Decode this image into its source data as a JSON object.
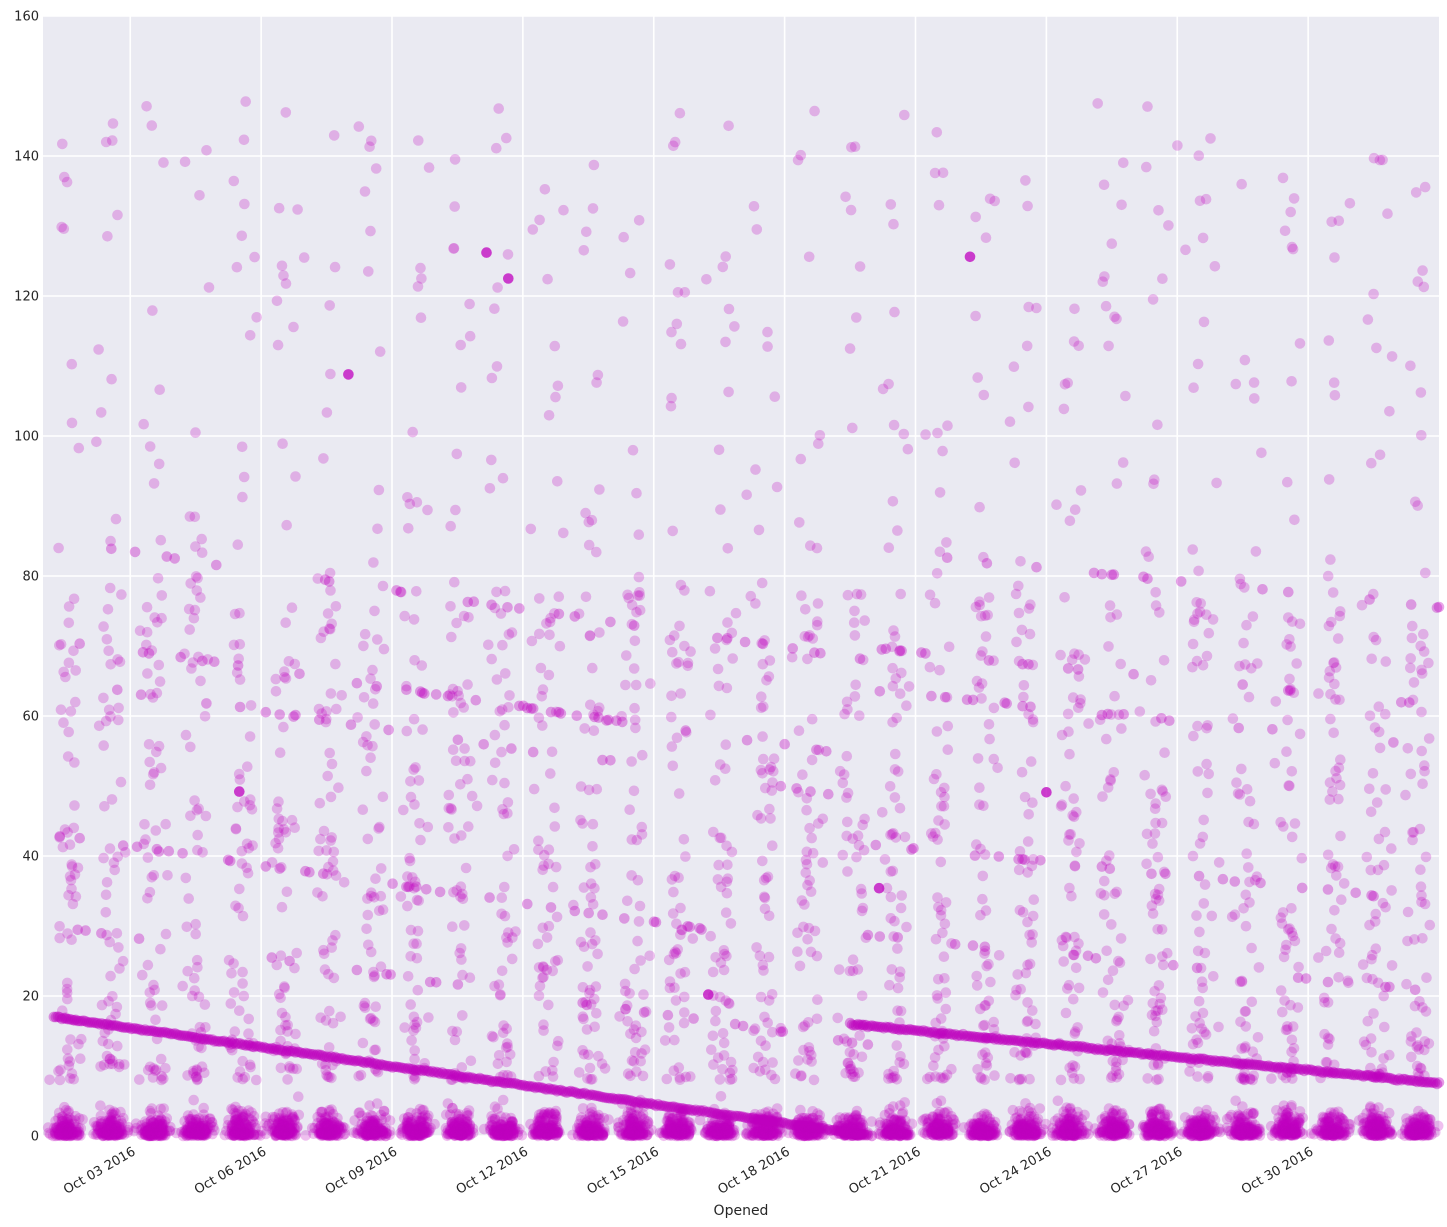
{
  "chart_data": {
    "type": "scatter",
    "title": "",
    "xlabel": "Opened",
    "ylabel": "",
    "xlim": [
      "2016-10-01",
      "2016-11-02"
    ],
    "ylim": [
      0,
      160
    ],
    "x_ticks": [
      "Oct 03 2016",
      "Oct 06 2016",
      "Oct 09 2016",
      "Oct 12 2016",
      "Oct 15 2016",
      "Oct 18 2016",
      "Oct 21 2016",
      "Oct 24 2016",
      "Oct 27 2016",
      "Oct 30 2016"
    ],
    "y_ticks": [
      "0",
      "20",
      "40",
      "60",
      "80",
      "100",
      "120",
      "140",
      "160"
    ],
    "grid": true,
    "point_color": "#bf00bf",
    "point_alpha": 0.25,
    "background_color": "#eaeaf2",
    "series": [
      {
        "bands": [
          {
            "start": "2016-10-01T06:00",
            "end": "2016-10-20T00:00",
            "y_start": 17,
            "y_end": 0
          },
          {
            "start": "2016-10-19T12:00",
            "end": "2016-11-02T00:00",
            "y_start": 16,
            "y_end": 7.5
          }
        ],
        "highlighted_points": [
          {
            "x": "2016-10-11T16:00",
            "y": 122.5
          },
          {
            "x": "2016-10-08T00:00",
            "y": 108.8
          },
          {
            "x": "2016-10-22T06:00",
            "y": 125.6
          },
          {
            "x": "2016-10-11T04:00",
            "y": 126.2
          },
          {
            "x": "2016-10-20T04:00",
            "y": 35.4
          },
          {
            "x": "2016-10-16T06:00",
            "y": 20.2
          },
          {
            "x": "2016-10-05T12:00",
            "y": 49.2
          },
          {
            "x": "2016-10-24T00:00",
            "y": 49.1
          }
        ]
      }
    ]
  }
}
